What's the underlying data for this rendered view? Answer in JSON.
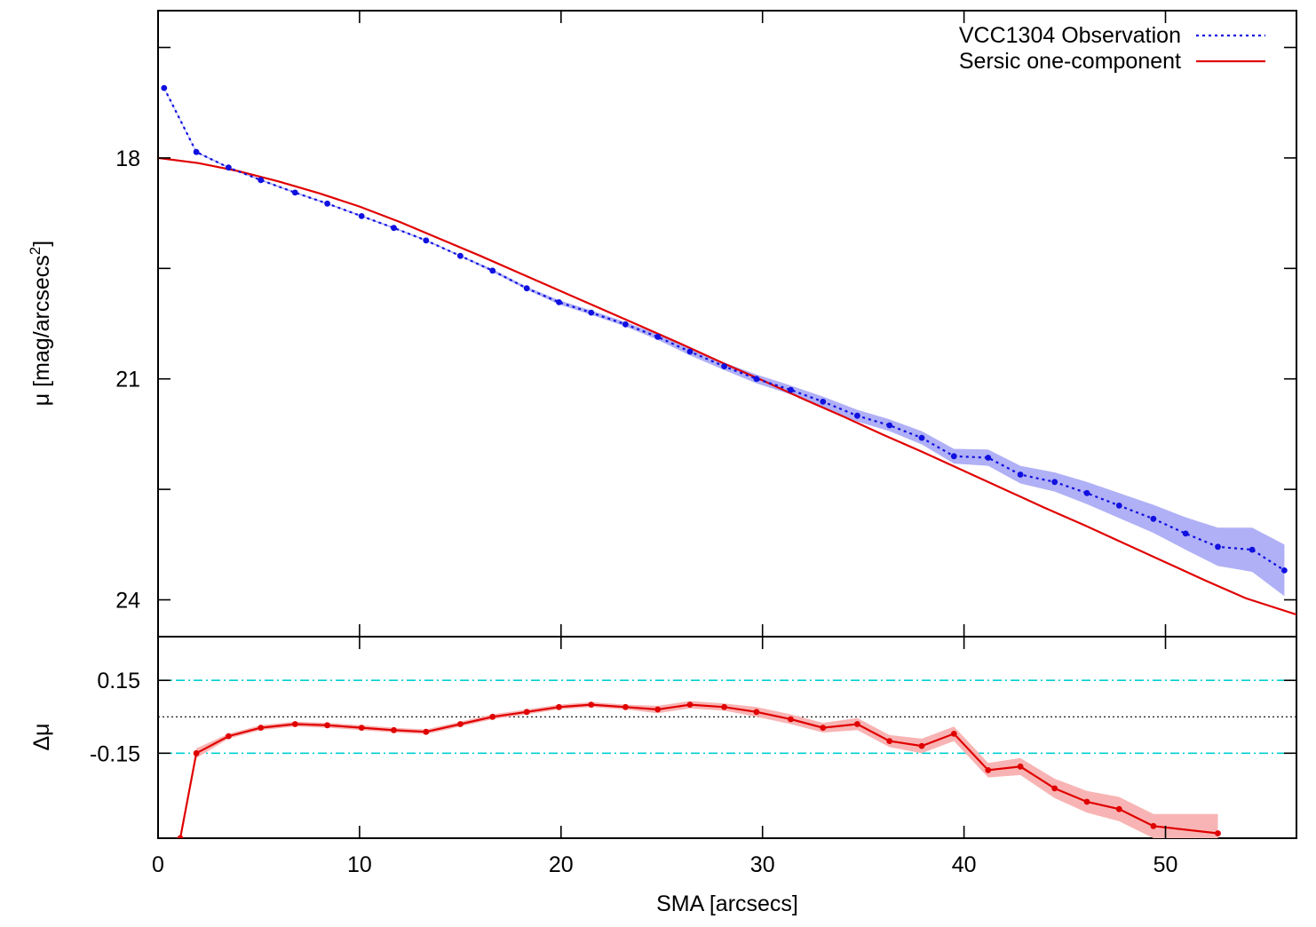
{
  "chart_data": [
    {
      "type": "line",
      "panel": "top",
      "title": "",
      "xlabel": "SMA [arcsecs]",
      "ylabel": "μ [mag/arcsecs",
      "ylabel_sup": "2",
      "ylabel_close": "]",
      "xlim": [
        0,
        56.5
      ],
      "ylim": [
        24.5,
        16.0
      ],
      "y_inverted": true,
      "yticks": [
        18,
        21,
        24
      ],
      "ytick_labels": [
        "18",
        "21",
        "24"
      ],
      "grid": false,
      "legend_position": "top-right",
      "series": [
        {
          "name": "VCC1304 Observation",
          "style": "dotted",
          "color": "#1010e0",
          "band_color": "#b0b0f6",
          "x": [
            0.3,
            1.9,
            3.5,
            5.1,
            6.8,
            8.4,
            10.1,
            11.7,
            13.3,
            15.0,
            16.6,
            18.3,
            19.9,
            21.5,
            23.2,
            24.8,
            26.4,
            28.1,
            29.7,
            31.4,
            33.0,
            34.7,
            36.3,
            37.9,
            39.5,
            41.2,
            42.8,
            44.5,
            46.1,
            47.7,
            49.4,
            51.0,
            52.6,
            54.3,
            55.9
          ],
          "y": [
            17.05,
            17.92,
            18.13,
            18.3,
            18.47,
            18.62,
            18.79,
            18.95,
            19.12,
            19.33,
            19.53,
            19.77,
            19.96,
            20.1,
            20.26,
            20.43,
            20.63,
            20.83,
            21.0,
            21.15,
            21.31,
            21.5,
            21.63,
            21.8,
            22.05,
            22.07,
            22.3,
            22.4,
            22.55,
            22.72,
            22.9,
            23.1,
            23.28,
            23.32,
            23.6
          ],
          "band": [
            0.01,
            0.01,
            0.01,
            0.01,
            0.01,
            0.01,
            0.01,
            0.01,
            0.01,
            0.01,
            0.02,
            0.02,
            0.03,
            0.03,
            0.03,
            0.04,
            0.05,
            0.05,
            0.06,
            0.06,
            0.07,
            0.08,
            0.08,
            0.09,
            0.1,
            0.11,
            0.12,
            0.13,
            0.15,
            0.17,
            0.19,
            0.22,
            0.26,
            0.3,
            0.35
          ]
        },
        {
          "name": "Sersic one-component",
          "style": "solid",
          "color": "#e00000",
          "x": [
            0,
            2,
            4,
            6,
            8,
            10,
            12,
            14,
            16,
            18,
            20,
            22,
            24,
            26,
            28,
            30,
            32,
            34,
            36,
            38,
            40,
            42,
            44,
            46,
            48,
            50,
            52,
            54,
            56.5
          ],
          "y": [
            18.0,
            18.07,
            18.18,
            18.32,
            18.48,
            18.66,
            18.87,
            19.1,
            19.33,
            19.57,
            19.81,
            20.05,
            20.29,
            20.53,
            20.78,
            21.02,
            21.27,
            21.51,
            21.76,
            22.0,
            22.25,
            22.5,
            22.75,
            22.99,
            23.24,
            23.49,
            23.74,
            23.98,
            24.2
          ]
        }
      ]
    },
    {
      "type": "line",
      "panel": "bottom",
      "title": "",
      "xlabel": "SMA [arcsecs]",
      "ylabel": "Δμ",
      "xlim": [
        0,
        56.5
      ],
      "ylim": [
        -0.5,
        0.33
      ],
      "xticks": [
        0,
        10,
        20,
        30,
        40,
        50
      ],
      "xtick_labels": [
        "0",
        "10",
        "20",
        "30",
        "40",
        "50"
      ],
      "yticks": [
        0.15,
        -0.15
      ],
      "ytick_labels": [
        "0.15",
        "-0.15"
      ],
      "reference_lines": [
        {
          "y": 0.15,
          "style": "dash-dot",
          "color": "#00d0d0"
        },
        {
          "y": -0.15,
          "style": "dash-dot",
          "color": "#00d0d0"
        },
        {
          "y": 0.0,
          "style": "dotted",
          "color": "#000000"
        }
      ],
      "grid": false,
      "series": [
        {
          "name": "",
          "style": "solid",
          "color": "#e00000",
          "band_color": "#f8b4b4",
          "x": [
            1.1,
            1.9,
            3.5,
            5.1,
            6.8,
            8.4,
            10.1,
            11.7,
            13.3,
            15.0,
            16.6,
            18.3,
            19.9,
            21.5,
            23.2,
            24.8,
            26.4,
            28.1,
            29.7,
            31.4,
            33.0,
            34.7,
            36.3,
            37.9,
            39.5,
            41.2,
            42.8,
            44.5,
            46.1,
            47.7,
            49.4,
            52.6
          ],
          "y": [
            -0.5,
            -0.15,
            -0.08,
            -0.045,
            -0.03,
            -0.035,
            -0.045,
            -0.055,
            -0.062,
            -0.03,
            0.0,
            0.02,
            0.04,
            0.05,
            0.04,
            0.03,
            0.05,
            0.04,
            0.02,
            -0.01,
            -0.045,
            -0.03,
            -0.1,
            -0.12,
            -0.07,
            -0.22,
            -0.205,
            -0.295,
            -0.35,
            -0.38,
            -0.45,
            -0.48
          ],
          "band": [
            0.0,
            0.02,
            0.01,
            0.01,
            0.01,
            0.01,
            0.01,
            0.01,
            0.01,
            0.01,
            0.01,
            0.01,
            0.01,
            0.01,
            0.01,
            0.015,
            0.015,
            0.015,
            0.02,
            0.02,
            0.02,
            0.025,
            0.025,
            0.03,
            0.03,
            0.03,
            0.035,
            0.04,
            0.045,
            0.05,
            0.05,
            0.08
          ]
        }
      ]
    }
  ]
}
